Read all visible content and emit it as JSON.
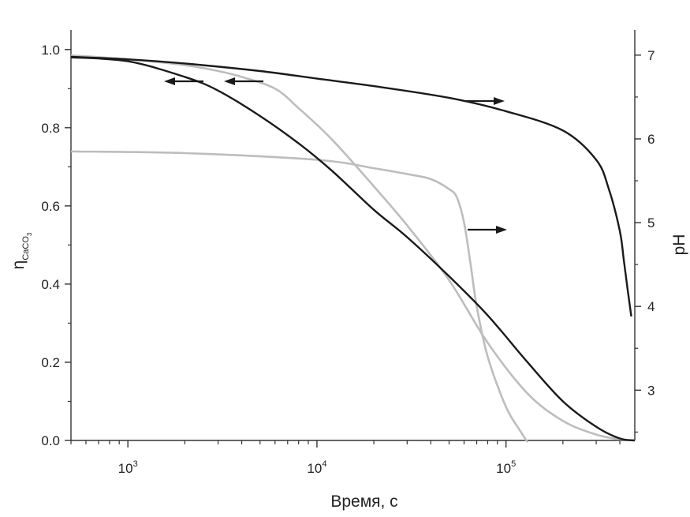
{
  "chart_data": {
    "type": "line",
    "title": "",
    "xlabel": "Время, с",
    "xscale": "log",
    "xlim": [
      500,
      480000
    ],
    "x_ticks": [
      {
        "value": 1000,
        "base": "10",
        "exp": "3"
      },
      {
        "value": 10000,
        "base": "10",
        "exp": "4"
      },
      {
        "value": 100000,
        "base": "10",
        "exp": "5"
      }
    ],
    "ylabel_left": {
      "main": "η",
      "sub": "CaCO",
      "subsub": "3"
    },
    "ylim_left": [
      0.0,
      1.05
    ],
    "y_ticks_left": [
      "0.0",
      "0.2",
      "0.4",
      "0.6",
      "0.8",
      "1.0"
    ],
    "ylabel_right": "pH",
    "ylim_right": [
      2.4,
      7.3
    ],
    "y_ticks_right": [
      "3",
      "4",
      "5",
      "6",
      "7"
    ],
    "grid": false,
    "colors": {
      "dark": "#1a1a1a",
      "light": "#bdbdbd"
    },
    "series": [
      {
        "axis": "left",
        "color": "dark",
        "x": [
          500,
          1000,
          2000,
          3000,
          5000,
          8000,
          12000,
          20000,
          30000,
          50000,
          80000,
          130000,
          200000,
          300000,
          400000,
          480000
        ],
        "y": [
          0.98,
          0.97,
          0.93,
          0.895,
          0.83,
          0.76,
          0.69,
          0.59,
          0.52,
          0.42,
          0.32,
          0.2,
          0.1,
          0.035,
          0.005,
          0.0
        ]
      },
      {
        "axis": "left",
        "color": "light",
        "x": [
          500,
          1000,
          2000,
          3000,
          4000,
          6000,
          8000,
          12000,
          20000,
          30000,
          50000,
          80000,
          130000,
          200000,
          300000,
          400000,
          480000
        ],
        "y": [
          0.985,
          0.975,
          0.96,
          0.945,
          0.93,
          0.9,
          0.85,
          0.77,
          0.65,
          0.55,
          0.41,
          0.25,
          0.12,
          0.05,
          0.015,
          0.003,
          0.0
        ]
      },
      {
        "axis": "right",
        "color": "dark",
        "x": [
          500,
          1000,
          2000,
          5000,
          10000,
          20000,
          50000,
          100000,
          200000,
          300000,
          350000,
          400000,
          420000,
          440000,
          460000
        ],
        "y": [
          6.98,
          6.95,
          6.9,
          6.81,
          6.72,
          6.63,
          6.49,
          6.33,
          6.1,
          5.75,
          5.4,
          4.9,
          4.55,
          4.2,
          3.88
        ]
      },
      {
        "axis": "right",
        "color": "light",
        "x": [
          500,
          2000,
          10000,
          20000,
          30000,
          40000,
          50000,
          55000,
          60000,
          65000,
          70000,
          80000,
          100000,
          120000,
          130000
        ],
        "y": [
          5.85,
          5.83,
          5.75,
          5.65,
          5.58,
          5.52,
          5.4,
          5.3,
          5.0,
          4.5,
          4.0,
          3.4,
          2.8,
          2.5,
          2.38
        ]
      }
    ],
    "annotations": [
      {
        "direction": "left"
      },
      {
        "direction": "left"
      },
      {
        "direction": "right"
      },
      {
        "direction": "right"
      }
    ]
  }
}
